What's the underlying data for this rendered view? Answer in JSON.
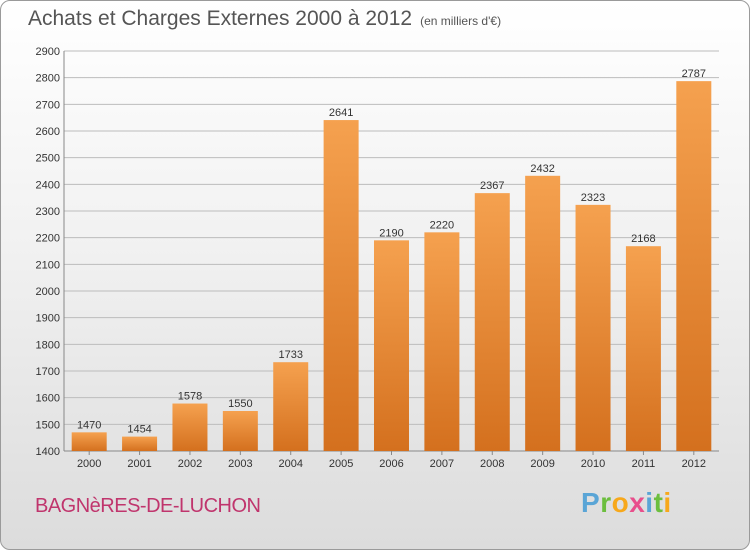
{
  "header": {
    "title": "Achats et Charges Externes 2000 à 2012",
    "unit": "(en milliers d'€)"
  },
  "footer": {
    "commune": "BAGNèRES-DE-LUCHON",
    "brand": [
      "P",
      "r",
      "o",
      "x",
      "i",
      "t",
      "i"
    ]
  },
  "chart_data": {
    "type": "bar",
    "title": "Achats et Charges Externes 2000 à 2012",
    "subtitle": "(en milliers d'€)",
    "categories": [
      "2000",
      "2001",
      "2002",
      "2003",
      "2004",
      "2005",
      "2006",
      "2007",
      "2008",
      "2009",
      "2010",
      "2011",
      "2012"
    ],
    "values": [
      1470,
      1454,
      1578,
      1550,
      1733,
      2641,
      2190,
      2220,
      2367,
      2432,
      2323,
      2168,
      2787
    ],
    "ylim": [
      1400,
      2900
    ],
    "yticks": [
      1400,
      1500,
      1600,
      1700,
      1800,
      1900,
      2000,
      2100,
      2200,
      2300,
      2400,
      2500,
      2600,
      2700,
      2800,
      2900
    ],
    "grid": true,
    "bar_color_top": "#f5a14f",
    "bar_color_bottom": "#d4701e",
    "grid_color": "#bcbcbc"
  }
}
